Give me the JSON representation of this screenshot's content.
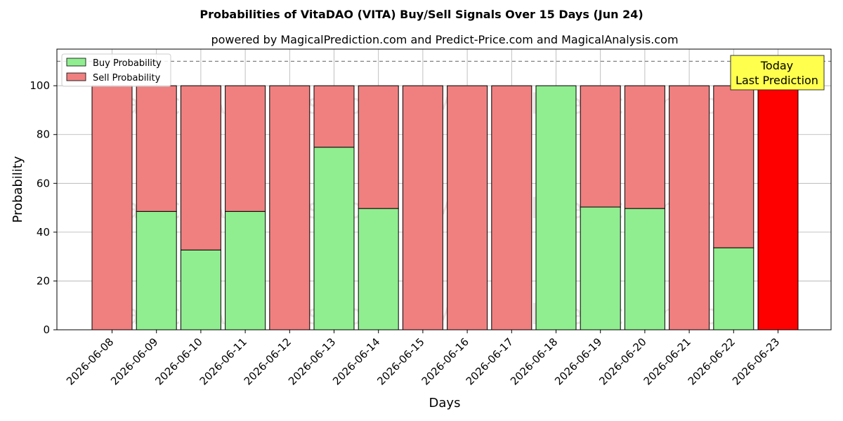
{
  "chart_data": {
    "type": "bar",
    "stacked": true,
    "title": "Probabilities of VitaDAO (VITA) Buy/Sell Signals Over 15 Days (Jun 24)",
    "subtitle": "powered by MagicalPrediction.com and Predict-Price.com and MagicalAnalysis.com",
    "xlabel": "Days",
    "ylabel": "Probability",
    "ylim": [
      0,
      115
    ],
    "yticks": [
      0,
      20,
      40,
      60,
      80,
      100
    ],
    "categories": [
      "2026-06-08",
      "2026-06-09",
      "2026-06-10",
      "2026-06-11",
      "2026-06-12",
      "2026-06-13",
      "2026-06-14",
      "2026-06-15",
      "2026-06-16",
      "2026-06-17",
      "2026-06-18",
      "2026-06-19",
      "2026-06-20",
      "2026-06-21",
      "2026-06-22",
      "2026-06-23"
    ],
    "series": [
      {
        "name": "Buy Probability",
        "color": "#90ee90",
        "values": [
          0,
          48.5,
          32.7,
          48.5,
          0,
          74.8,
          49.7,
          0,
          0,
          0,
          100,
          50.3,
          49.7,
          0,
          33.6,
          0
        ]
      },
      {
        "name": "Sell Probability",
        "color": "#f08080",
        "values": [
          100,
          51.5,
          67.3,
          51.5,
          100,
          25.2,
          50.3,
          100,
          100,
          100,
          0,
          49.7,
          50.3,
          100,
          66.4,
          100
        ]
      }
    ],
    "highlight": {
      "index": 15,
      "color": "#ff0000"
    },
    "reference_line": {
      "y": 110,
      "style": "dashed",
      "color": "#808080"
    },
    "grid": true,
    "legend_position": "top-left",
    "annotation": {
      "lines": [
        "Today",
        "Last Prediction"
      ],
      "background": "#ffff4d"
    },
    "watermarks": [
      "MagicalAnalysis.com",
      "MagicalPrediction.com"
    ]
  }
}
